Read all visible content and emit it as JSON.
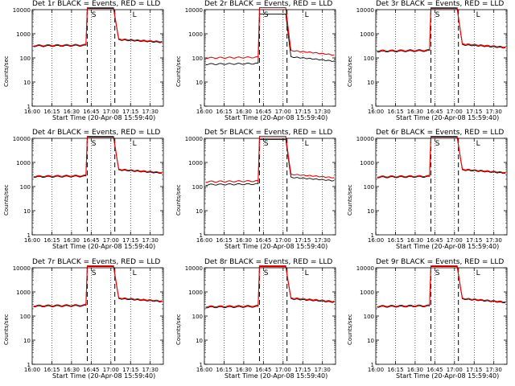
{
  "chart_data": {
    "type": "line",
    "layout": "3x3 small multiples",
    "y_scale": "log",
    "ylim": [
      1,
      10000
    ],
    "y_ticks": [
      "1",
      "10",
      "100",
      "1000",
      "10000"
    ],
    "x_ticks": [
      "16:00",
      "16:15",
      "16:30",
      "16:45",
      "17:00",
      "17:15",
      "17:30"
    ],
    "xlim": [
      "16:00",
      "17:40"
    ],
    "ylabel": "Counts/sec",
    "xlabel": "Start Time (20-Apr-08 15:59:40)",
    "event_lines": {
      "dashed": [
        "16:42",
        "17:03"
      ],
      "dotted": [
        "16:15",
        "16:30",
        "16:45",
        "17:00",
        "17:15",
        "17:30"
      ]
    },
    "markers": [
      {
        "label": "S",
        "time": "16:47"
      },
      {
        "label": "L",
        "time": "17:18"
      }
    ],
    "series_colors": {
      "events": "#000000",
      "lld": "#ff0000"
    },
    "panels": [
      {
        "title": "Det 1r BLACK = Events, RED = LLD",
        "pre": 330,
        "post": 600,
        "end": 470,
        "black_ratio": 0.93,
        "jump": "16:42"
      },
      {
        "title": "Det 2r BLACK = Events, RED = LLD",
        "pre": 100,
        "post": 200,
        "end": 130,
        "black_ratio": 0.55,
        "jump": "16:42"
      },
      {
        "title": "Det 3r BLACK = Events, RED = LLD",
        "pre": 200,
        "post": 380,
        "end": 280,
        "black_ratio": 0.92,
        "jump": "16:42"
      },
      {
        "title": "Det 4r BLACK = Events, RED = LLD",
        "pre": 270,
        "post": 520,
        "end": 380,
        "black_ratio": 0.93,
        "jump": "16:42"
      },
      {
        "title": "Det 5r BLACK = Events, RED = LLD",
        "pre": 160,
        "post": 320,
        "end": 230,
        "black_ratio": 0.75,
        "jump": "16:42"
      },
      {
        "title": "Det 6r BLACK = Events, RED = LLD",
        "pre": 260,
        "post": 520,
        "end": 380,
        "black_ratio": 0.93,
        "jump": "16:42"
      },
      {
        "title": "Det 7r BLACK = Events, RED = LLD",
        "pre": 270,
        "post": 560,
        "end": 420,
        "black_ratio": 0.93,
        "jump": "16:42"
      },
      {
        "title": "Det 8r BLACK = Events, RED = LLD",
        "pre": 250,
        "post": 560,
        "end": 400,
        "black_ratio": 0.92,
        "jump": "16:42"
      },
      {
        "title": "Det 9r BLACK = Events, RED = LLD",
        "pre": 260,
        "post": 540,
        "end": 380,
        "black_ratio": 0.93,
        "jump": "16:42"
      }
    ]
  }
}
